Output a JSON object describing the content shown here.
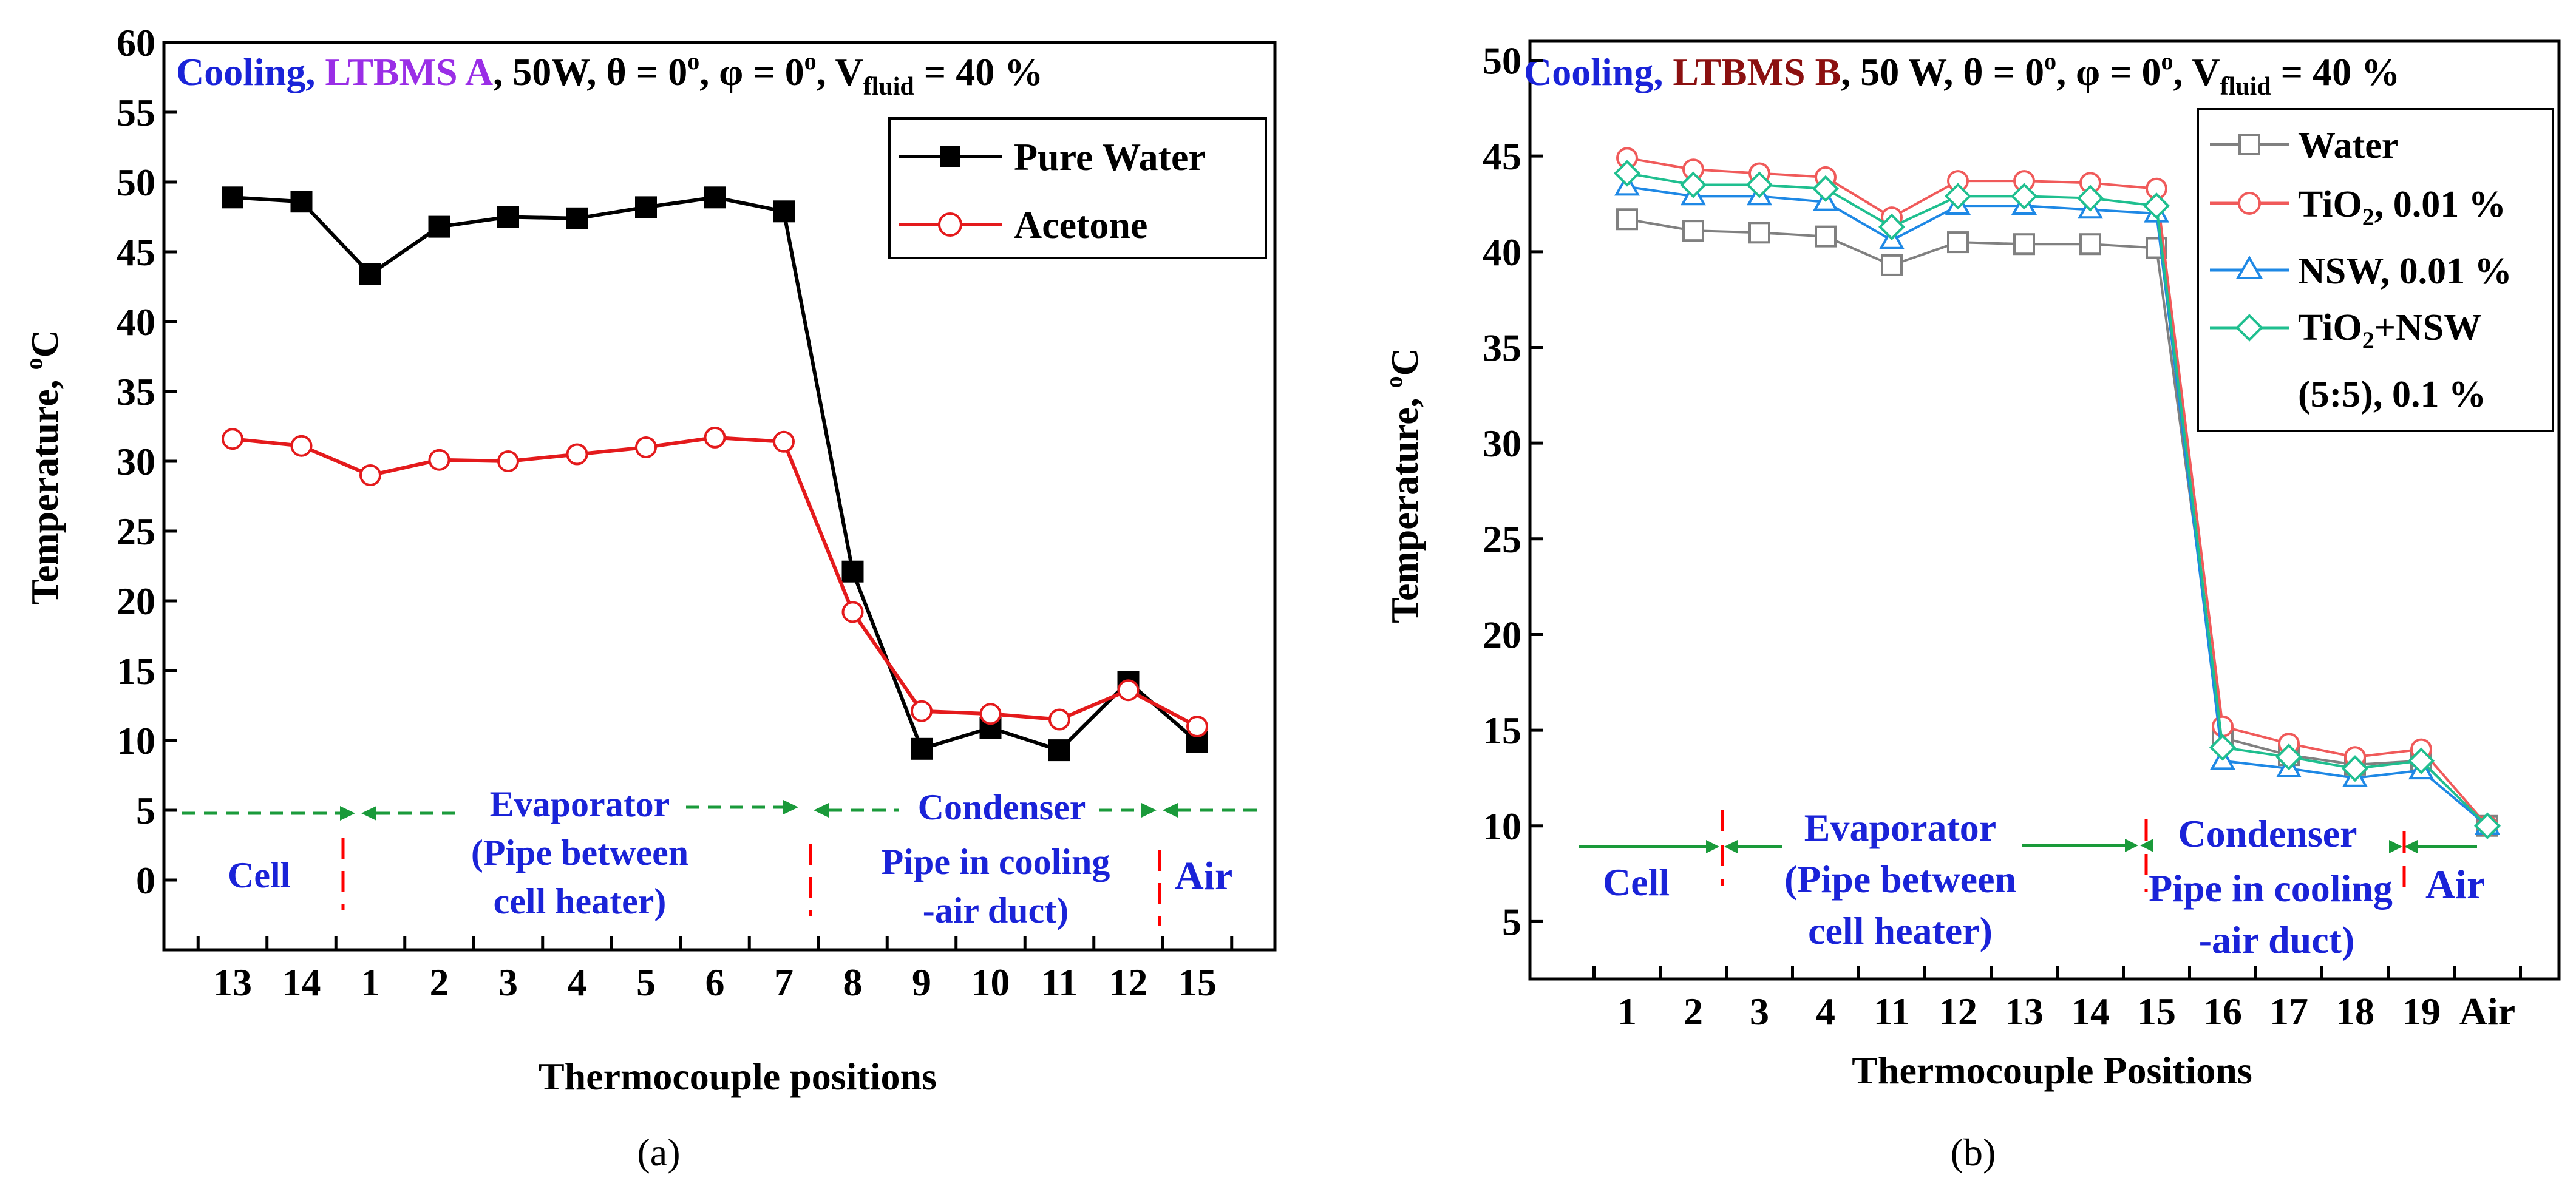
{
  "colors": {
    "blue": "#1a23d8",
    "purple": "#9a2ee6",
    "darkred": "#8b1010",
    "black": "#000000",
    "red": "#e41a1c",
    "water_b": "#808080",
    "tio2": "#f05a5a",
    "nsw": "#1e88e5",
    "mix": "#1fbf8f",
    "green": "#1a9a3a",
    "dashred": "#ff0000"
  },
  "chart_data": [
    {
      "panel": "a",
      "type": "line",
      "sublabel": "(a)",
      "title": {
        "p1": "Cooling, ",
        "p2": "LTBMS A",
        "p3": ", 50W, θ = 0",
        "sup1": "o",
        "p4": ", φ = 0",
        "sup2": "o",
        "p5": ", V",
        "sub": "fluid",
        "p6": " = 40 %"
      },
      "xlabel": "Thermocouple positions",
      "ylabel": "Temperature, ",
      "ylabel_sup": "o",
      "ylabel_unit": "C",
      "categories": [
        "13",
        "14",
        "1",
        "2",
        "3",
        "4",
        "5",
        "6",
        "7",
        "8",
        "9",
        "10",
        "11",
        "12",
        "15"
      ],
      "ylim": [
        -5,
        60
      ],
      "yticks": [
        0,
        5,
        10,
        15,
        20,
        25,
        30,
        35,
        40,
        45,
        50,
        55,
        60
      ],
      "series": [
        {
          "name": "Pure Water",
          "marker": "square",
          "values": [
            48.9,
            48.6,
            43.4,
            46.8,
            47.5,
            47.4,
            48.2,
            48.9,
            47.9,
            22.1,
            9.4,
            10.9,
            9.3,
            14.2,
            9.9
          ]
        },
        {
          "name": "Acetone",
          "marker": "circle",
          "values": [
            31.6,
            31.1,
            29.0,
            30.1,
            30.0,
            30.5,
            31.0,
            31.7,
            31.4,
            19.2,
            12.1,
            11.9,
            11.5,
            13.6,
            11.0
          ]
        }
      ],
      "regions": [
        {
          "label": "Cell"
        },
        {
          "label1": "Evaporator",
          "label2": "(Pipe between",
          "label3": "cell heater)"
        },
        {
          "label1": "Condenser",
          "label2": "Pipe in cooling",
          "label3": "-air duct)"
        },
        {
          "label": "Air"
        }
      ]
    },
    {
      "panel": "b",
      "type": "line",
      "sublabel": "(b)",
      "title": {
        "p1": "Cooling, ",
        "p2": "LTBMS B",
        "p3": ", 50 W, θ = 0",
        "sup1": "o",
        "p4": ", φ = 0",
        "sup2": "o",
        "p5": ", V",
        "sub": "fluid",
        "p6": " = 40 %"
      },
      "xlabel": "Thermocouple Positions",
      "ylabel": "Temperature, ",
      "ylabel_sup": "o",
      "ylabel_unit": "C",
      "categories": [
        "1",
        "2",
        "3",
        "4",
        "11",
        "12",
        "13",
        "14",
        "15",
        "16",
        "17",
        "18",
        "19",
        "Air"
      ],
      "ylim": [
        2,
        51
      ],
      "yticks": [
        5,
        10,
        15,
        20,
        25,
        30,
        35,
        40,
        45,
        50
      ],
      "series": [
        {
          "name": "Water",
          "marker": "square",
          "values": [
            41.7,
            41.1,
            41.0,
            40.8,
            39.3,
            40.5,
            40.4,
            40.4,
            40.2,
            14.6,
            13.7,
            13.2,
            13.4,
            10.0
          ]
        },
        {
          "name": "TiO",
          "name_sub": "2",
          "name_rest": ", 0.01 %",
          "marker": "circle",
          "values": [
            44.9,
            44.3,
            44.1,
            43.9,
            41.8,
            43.7,
            43.7,
            43.6,
            43.3,
            15.2,
            14.3,
            13.6,
            14.0,
            10.0
          ]
        },
        {
          "name": "NSW, 0.01 %",
          "marker": "triangle",
          "values": [
            43.4,
            42.9,
            42.9,
            42.6,
            40.6,
            42.4,
            42.4,
            42.2,
            42.0,
            13.4,
            13.0,
            12.5,
            12.9,
            10.0
          ]
        },
        {
          "name": "TiO",
          "name_sub": "2",
          "name_rest": "+NSW",
          "name_line2": "(5:5), 0.1 %",
          "marker": "diamond",
          "values": [
            44.1,
            43.5,
            43.5,
            43.3,
            41.3,
            42.9,
            42.9,
            42.8,
            42.4,
            14.1,
            13.6,
            13.0,
            13.4,
            10.0
          ]
        }
      ],
      "regions": [
        {
          "label": "Cell"
        },
        {
          "label1": "Evaporator",
          "label2": "(Pipe between",
          "label3": "cell heater)"
        },
        {
          "label1": "Condenser",
          "label2": "Pipe in cooling",
          "label3": "-air duct)"
        },
        {
          "label": "Air"
        }
      ]
    }
  ]
}
